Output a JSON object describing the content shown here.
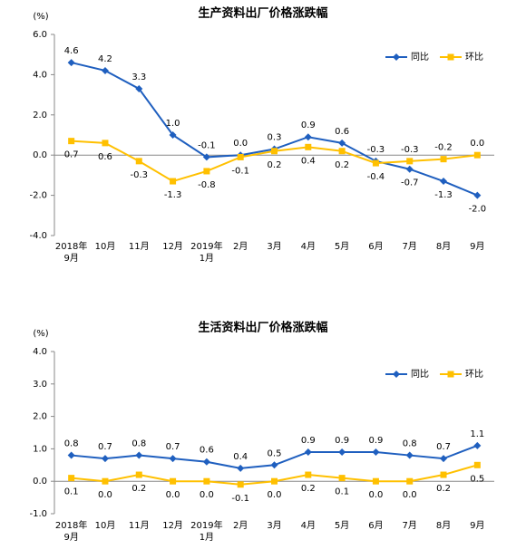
{
  "chart_data": [
    {
      "type": "line",
      "title": "生产资料出厂价格涨跌幅",
      "y_label": "(%)",
      "categories": [
        [
          "2018年",
          "9月"
        ],
        "10月",
        "11月",
        "12月",
        [
          "2019年",
          "1月"
        ],
        "2月",
        "3月",
        "4月",
        "5月",
        "6月",
        "7月",
        "8月",
        "9月"
      ],
      "ylim": [
        -4,
        6
      ],
      "yticks": [
        {
          "value": -4,
          "label": "-4.0"
        },
        {
          "value": -2,
          "label": "-2.0"
        },
        {
          "value": 0,
          "label": "0.0"
        },
        {
          "value": 2,
          "label": "2.0"
        },
        {
          "value": 4,
          "label": "4.0"
        },
        {
          "value": 6,
          "label": "6.0"
        }
      ],
      "legend": "upper right",
      "grid": false,
      "series": [
        {
          "name": "同比",
          "color": "#1f5fbf",
          "marker": "diamond",
          "values": [
            4.6,
            4.2,
            3.3,
            1.0,
            -0.1,
            0.0,
            0.3,
            0.9,
            0.6,
            -0.3,
            -0.7,
            -1.3,
            -2.0
          ],
          "value_labels": [
            "4.6",
            "4.2",
            "3.3",
            "1.0",
            "-0.1",
            "0.0",
            "0.3",
            "0.9",
            "0.6",
            "-0.3",
            "-0.7",
            "-1.3",
            "-2.0"
          ]
        },
        {
          "name": "环比",
          "color": "#ffc000",
          "marker": "square",
          "values": [
            0.7,
            0.6,
            -0.3,
            -1.3,
            -0.8,
            -0.1,
            0.2,
            0.4,
            0.2,
            -0.4,
            -0.3,
            -0.2,
            0.0
          ],
          "value_labels": [
            "0.7",
            "0.6",
            "-0.3",
            "-1.3",
            "-0.8",
            "-0.1",
            "0.2",
            "0.4",
            "0.2",
            "-0.4",
            "-0.3",
            "-0.2",
            "0.0"
          ]
        }
      ]
    },
    {
      "type": "line",
      "title": "生活资料出厂价格涨跌幅",
      "y_label": "(%)",
      "categories": [
        [
          "2018年",
          "9月"
        ],
        "10月",
        "11月",
        "12月",
        [
          "2019年",
          "1月"
        ],
        "2月",
        "3月",
        "4月",
        "5月",
        "6月",
        "7月",
        "8月",
        "9月"
      ],
      "ylim": [
        -1,
        4
      ],
      "yticks": [
        {
          "value": -1,
          "label": "-1.0"
        },
        {
          "value": 0,
          "label": "0.0"
        },
        {
          "value": 1,
          "label": "1.0"
        },
        {
          "value": 2,
          "label": "2.0"
        },
        {
          "value": 3,
          "label": "3.0"
        },
        {
          "value": 4,
          "label": "4.0"
        }
      ],
      "legend": "upper right",
      "grid": false,
      "series": [
        {
          "name": "同比",
          "color": "#1f5fbf",
          "marker": "diamond",
          "values": [
            0.8,
            0.7,
            0.8,
            0.7,
            0.6,
            0.4,
            0.5,
            0.9,
            0.9,
            0.9,
            0.8,
            0.7,
            1.1
          ],
          "value_labels": [
            "0.8",
            "0.7",
            "0.8",
            "0.7",
            "0.6",
            "0.4",
            "0.5",
            "0.9",
            "0.9",
            "0.9",
            "0.8",
            "0.7",
            "1.1"
          ]
        },
        {
          "name": "环比",
          "color": "#ffc000",
          "marker": "square",
          "values": [
            0.1,
            0.0,
            0.2,
            0.0,
            0.0,
            -0.1,
            0.0,
            0.2,
            0.1,
            0.0,
            0.0,
            0.2,
            0.5
          ],
          "value_labels": [
            "0.1",
            "0.0",
            "0.2",
            "0.0",
            "0.0",
            "-0.1",
            "0.0",
            "0.2",
            "0.1",
            "0.0",
            "0.0",
            "0.2",
            "0.5"
          ]
        }
      ]
    }
  ]
}
